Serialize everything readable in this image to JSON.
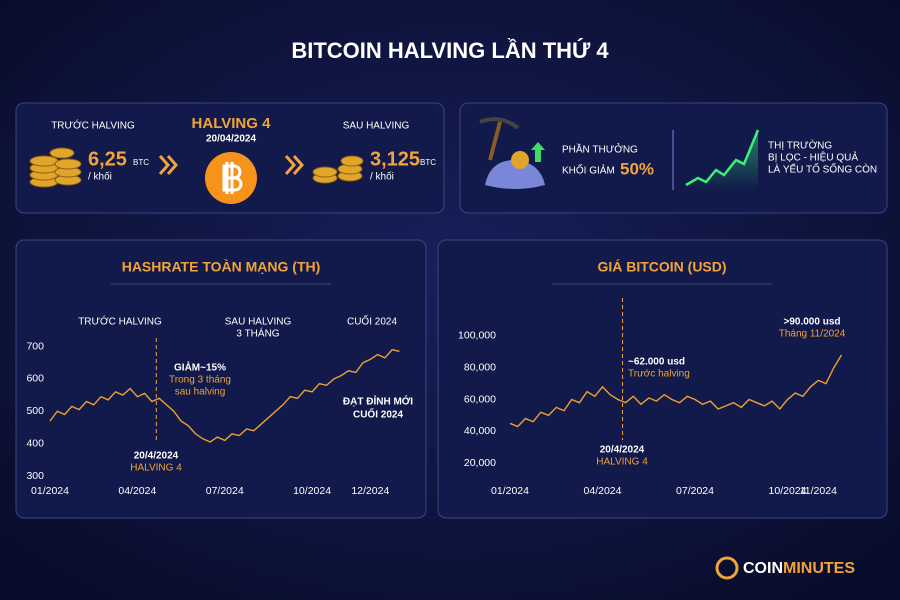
{
  "title": "BITCOIN HALVING LẦN THỨ 4",
  "halving_panel": {
    "before_label": "TRƯỚC HALVING",
    "before_value": "6,25",
    "before_unit": "BTC",
    "before_per": "/ khối",
    "center_title": "HALVING 4",
    "center_date": "20/04/2024",
    "after_label": "SAU HALVING",
    "after_value": "3,125",
    "after_unit": "BTC",
    "after_per": "/ khối"
  },
  "effects_panel": {
    "reward_label": "PHẦN THƯỞNG",
    "reward_sub": "KHỐI GIẢM",
    "reward_pct": "50%",
    "market_lines": [
      "THỊ TRƯỜNG",
      "BỊ LỌC - HIỆU QUẢ",
      "LÀ YẾU TỐ SỐNG CÒN"
    ]
  },
  "chart_data": [
    {
      "type": "line",
      "title": "HASHRATE TOÀN MẠNG (TH)",
      "color": "#f0a030",
      "x": [
        0,
        0.25,
        0.5,
        0.75,
        1,
        1.25,
        1.5,
        1.75,
        2,
        2.25,
        2.5,
        2.75,
        3,
        3.25,
        3.5,
        3.75,
        4,
        4.25,
        4.5,
        4.75,
        5,
        5.25,
        5.5,
        5.75,
        6,
        6.25,
        6.5,
        6.75,
        7,
        7.25,
        7.5,
        7.75,
        8,
        8.25,
        8.5,
        8.75,
        9,
        9.25,
        9.5,
        9.75,
        10,
        10.25,
        10.5,
        10.75,
        11,
        11.25,
        11.5,
        11.75,
        12
      ],
      "values": [
        470,
        500,
        490,
        515,
        505,
        530,
        520,
        545,
        535,
        560,
        550,
        570,
        545,
        555,
        530,
        540,
        520,
        500,
        470,
        455,
        430,
        415,
        405,
        420,
        410,
        430,
        425,
        445,
        440,
        460,
        480,
        500,
        520,
        545,
        540,
        565,
        560,
        585,
        580,
        600,
        610,
        625,
        620,
        650,
        660,
        675,
        665,
        690,
        685
      ],
      "xlim": [
        0,
        12.5
      ],
      "ylim": [
        300,
        720
      ],
      "xticks": [
        {
          "value": 0,
          "label": "01/2024"
        },
        {
          "value": 3,
          "label": "04/2024"
        },
        {
          "value": 6,
          "label": "07/2024"
        },
        {
          "value": 9,
          "label": "10/2024"
        },
        {
          "value": 11,
          "label": "12/2024"
        }
      ],
      "yticks": [
        300,
        400,
        500,
        600,
        700
      ],
      "vline_x": 3.65,
      "annotations": [
        "TRƯỚC HALVING",
        "SAU HALVING",
        "3 THÁNG",
        "CUỐI 2024",
        "GIẢM~15%",
        "Trong 3 tháng",
        "sau halving",
        "ĐẠT ĐỈNH MỚI",
        "CUỐI 2024",
        "20/4/2024",
        "HALVING 4"
      ]
    },
    {
      "type": "line",
      "title": "GIÁ BITCOIN (USD)",
      "color": "#f0a030",
      "x": [
        0,
        0.25,
        0.5,
        0.75,
        1,
        1.25,
        1.5,
        1.75,
        2,
        2.25,
        2.5,
        2.75,
        3,
        3.25,
        3.5,
        3.75,
        4,
        4.25,
        4.5,
        4.75,
        5,
        5.25,
        5.5,
        5.75,
        6,
        6.25,
        6.5,
        6.75,
        7,
        7.25,
        7.5,
        7.75,
        8,
        8.25,
        8.5,
        8.75,
        9,
        9.25,
        9.5,
        9.75,
        10,
        10.25,
        10.5,
        10.75
      ],
      "values": [
        45000,
        43000,
        48000,
        46000,
        52000,
        50000,
        55000,
        53000,
        60000,
        58000,
        65000,
        62000,
        68000,
        63000,
        60000,
        58000,
        62000,
        57000,
        61000,
        59000,
        63000,
        60000,
        58000,
        62000,
        60000,
        57000,
        59000,
        54000,
        56000,
        58000,
        55000,
        60000,
        58000,
        56000,
        59000,
        54000,
        60000,
        64000,
        62000,
        68000,
        72000,
        70000,
        80000,
        88000
      ],
      "xlim": [
        0,
        10.8
      ],
      "ylim": [
        15000,
        105000
      ],
      "xticks": [
        {
          "value": 0,
          "label": "01/2024"
        },
        {
          "value": 3,
          "label": "04/2024"
        },
        {
          "value": 6,
          "label": "07/2024"
        },
        {
          "value": 9,
          "label": "10/2024"
        },
        {
          "value": 10,
          "label": "11/2024"
        }
      ],
      "yticks": [
        {
          "value": 20000,
          "label": "20,000"
        },
        {
          "value": 40000,
          "label": "40,000"
        },
        {
          "value": 60000,
          "label": "60,000"
        },
        {
          "value": 80000,
          "label": "80,000"
        },
        {
          "value": 100000,
          "label": "100,000"
        }
      ],
      "vline_x": 3.65,
      "annotations": [
        ">90.000 usd",
        "Tháng 11/2024",
        "~62.000 usd",
        "Trước halving",
        "20/4/2024",
        "HALVING 4"
      ]
    }
  ],
  "brand": [
    "COIN",
    "MINUTES"
  ]
}
